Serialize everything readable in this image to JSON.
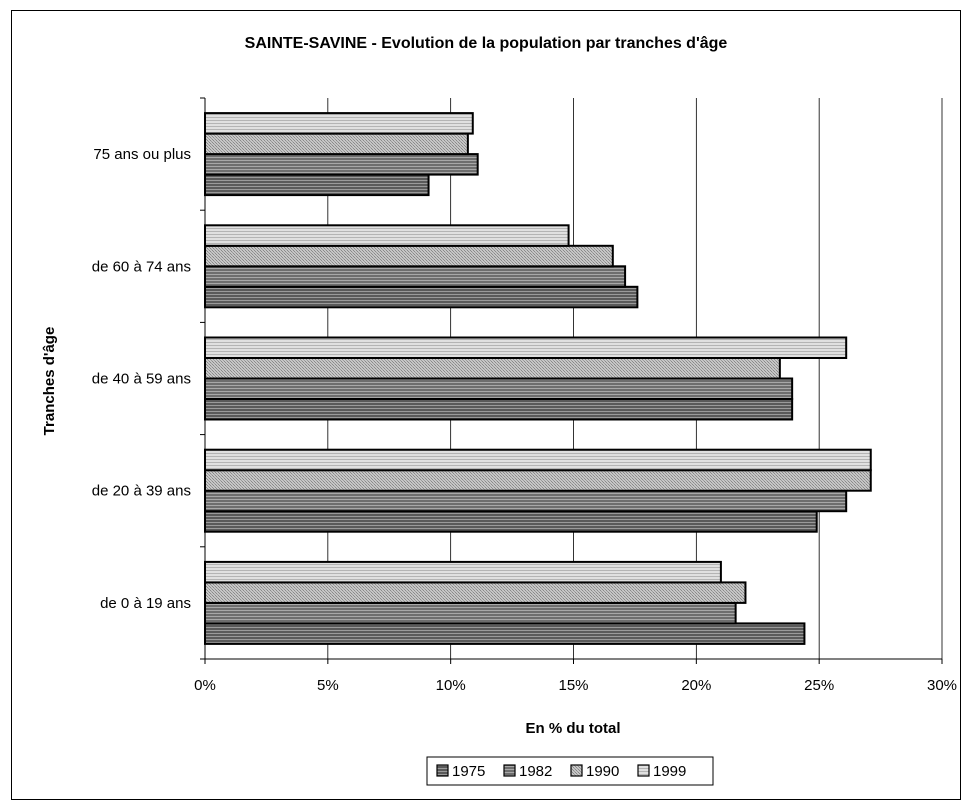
{
  "chart_data": {
    "type": "bar",
    "orientation": "horizontal",
    "title": "SAINTE-SAVINE - Evolution de la population par tranches d'âge",
    "xlabel": "En % du total",
    "ylabel": "Tranches d'âge",
    "categories": [
      "de 0 à 19 ans",
      "de 20 à 39 ans",
      "de 40 à 59 ans",
      "de 60 à 74 ans",
      "75 ans ou plus"
    ],
    "xlim": [
      0,
      30
    ],
    "xticks": [
      "0%",
      "5%",
      "10%",
      "15%",
      "20%",
      "25%",
      "30%"
    ],
    "grid": "vertical",
    "legend_position": "bottom",
    "series": [
      {
        "name": "1975",
        "values": [
          24.4,
          24.9,
          23.9,
          17.6,
          9.1
        ],
        "color": "#606060"
      },
      {
        "name": "1982",
        "values": [
          21.6,
          26.1,
          23.9,
          17.1,
          11.1
        ],
        "color": "#7a7a7a"
      },
      {
        "name": "1990",
        "values": [
          22.0,
          27.1,
          23.4,
          16.6,
          10.7
        ],
        "color": "#b8b8b8"
      },
      {
        "name": "1999",
        "values": [
          21.0,
          27.1,
          26.1,
          14.8,
          10.9
        ],
        "color": "#d4d4d4"
      }
    ]
  }
}
